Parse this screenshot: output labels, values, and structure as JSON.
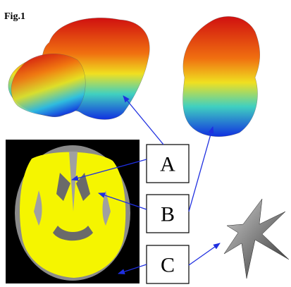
{
  "figure": {
    "label": "Fig.1"
  },
  "boxes": [
    {
      "label": "A"
    },
    {
      "label": "B"
    },
    {
      "label": "C"
    }
  ]
}
